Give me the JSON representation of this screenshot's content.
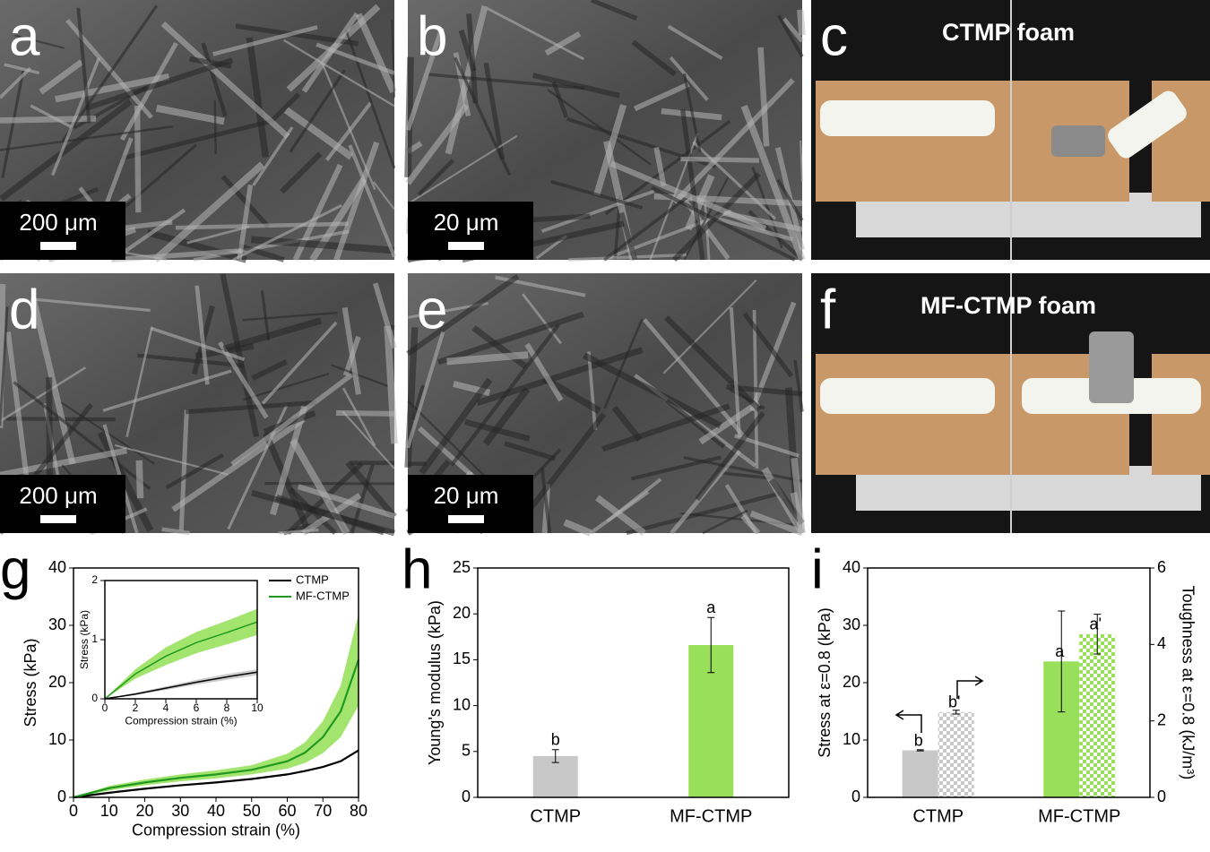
{
  "panels": [
    {
      "label": "a",
      "scale_bar": "200 μm"
    },
    {
      "label": "b",
      "scale_bar": "20 μm"
    },
    {
      "label": "c",
      "caption": "CTMP foam"
    },
    {
      "label": "d",
      "scale_bar": "200 μm"
    },
    {
      "label": "e",
      "scale_bar": "20 μm"
    },
    {
      "label": "f",
      "caption": "MF-CTMP foam"
    },
    {
      "label": "g"
    },
    {
      "label": "h"
    },
    {
      "label": "i"
    }
  ],
  "chart_data": [
    {
      "type": "line",
      "x_label": "Compression strain (%)",
      "y_label": "Stress (kPa)",
      "x": [
        0,
        10,
        20,
        30,
        40,
        50,
        60,
        65,
        70,
        75,
        80
      ],
      "xlim": [
        0,
        80
      ],
      "xticks": [
        0,
        10,
        20,
        30,
        40,
        50,
        60,
        70,
        80
      ],
      "ylim": [
        0,
        40
      ],
      "yticks": [
        0,
        10,
        20,
        30,
        40
      ],
      "legend": "upper right",
      "series": [
        {
          "name": "CTMP",
          "color": "#000000",
          "values": [
            0,
            0.8,
            1.5,
            2.1,
            2.6,
            3.2,
            4.0,
            4.6,
            5.3,
            6.3,
            8.2
          ]
        },
        {
          "name": "MF-CTMP",
          "color": "#1f9a1f",
          "band_color": "#a3e46e",
          "values": [
            0,
            1.6,
            2.6,
            3.4,
            4.0,
            4.8,
            6.3,
            7.8,
            10.5,
            15,
            24
          ],
          "error": [
            0,
            0.4,
            0.5,
            0.6,
            0.7,
            0.8,
            1.3,
            1.8,
            2.8,
            4.5,
            8
          ]
        }
      ]
    },
    {
      "type": "line",
      "x_label": "Compression strain (%)",
      "y_label": "Stress (kPa)",
      "x": [
        0,
        2,
        4,
        6,
        8,
        10
      ],
      "xlim": [
        0,
        10
      ],
      "xticks": [
        0,
        2,
        4,
        6,
        8,
        10
      ],
      "ylim": [
        0,
        2
      ],
      "yticks": [
        0,
        1,
        2
      ],
      "series": [
        {
          "color": "#000000",
          "band_color": "#cccccc",
          "values": [
            0,
            0.08,
            0.18,
            0.28,
            0.37,
            0.45
          ],
          "error": [
            0,
            0.02,
            0.03,
            0.04,
            0.05,
            0.05
          ]
        },
        {
          "color": "#1f9a1f",
          "band_color": "#a3e46e",
          "values": [
            0,
            0.42,
            0.72,
            0.95,
            1.12,
            1.3
          ],
          "error": [
            0,
            0.08,
            0.15,
            0.18,
            0.2,
            0.22
          ]
        }
      ]
    },
    {
      "type": "bar",
      "y_label": "Young's modulus (kPa)",
      "categories": [
        "CTMP",
        "MF-CTMP"
      ],
      "ylim": [
        0,
        25
      ],
      "yticks": [
        0,
        5,
        10,
        15,
        20,
        25
      ],
      "series": [
        {
          "colors": [
            "#c8c8c8",
            "#99e05a"
          ],
          "values": [
            4.5,
            16.6
          ],
          "error": [
            0.7,
            3.0
          ],
          "annotations": [
            "b",
            "a"
          ]
        }
      ]
    },
    {
      "type": "bar",
      "y_label": "Stress at ε=0.8 (kPa)",
      "y2_label": "Toughness at ε=0.8 (kJ/m³)",
      "categories": [
        "CTMP",
        "MF-CTMP"
      ],
      "ylim": [
        0,
        40
      ],
      "yticks": [
        0,
        10,
        20,
        30,
        40
      ],
      "y2lim": [
        0,
        6
      ],
      "y2ticks": [
        0,
        2,
        4,
        6
      ],
      "series": [
        {
          "colors": [
            "#c8c8c8",
            "#99e05a"
          ],
          "values": [
            8.2,
            23.7
          ],
          "error": [
            0.1,
            8.8
          ],
          "annotations": [
            "b",
            "a"
          ]
        },
        {
          "axis": "y2",
          "pattern": "checker",
          "colors": [
            "#c8c8c8",
            "#99e05a"
          ],
          "values": [
            2.23,
            4.27
          ],
          "error": [
            0.05,
            0.52
          ],
          "annotations": [
            "b'",
            "a'"
          ]
        }
      ]
    }
  ]
}
